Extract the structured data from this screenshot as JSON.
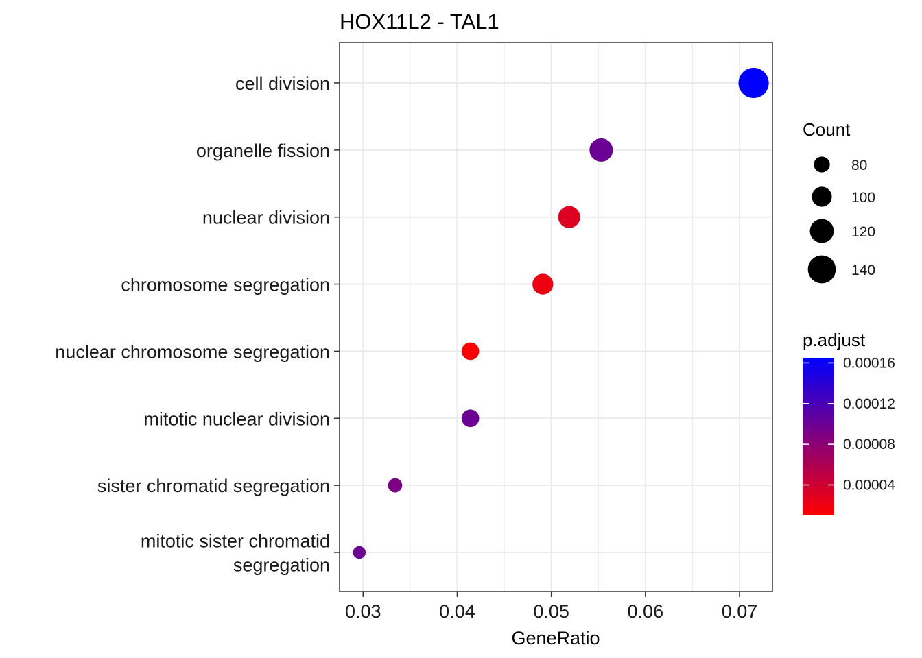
{
  "chart_data": {
    "type": "scatter",
    "title": "HOX11L2 - TAL1",
    "xlabel": "GeneRatio",
    "ylabel": "",
    "xlim": [
      0.0275,
      0.0735
    ],
    "x_ticks": [
      0.03,
      0.04,
      0.05,
      0.06,
      0.07
    ],
    "x_tick_labels": [
      "0.03",
      "0.04",
      "0.05",
      "0.06",
      "0.07"
    ],
    "grid": true,
    "categories": [
      "cell division",
      "organelle fission",
      "nuclear division",
      "chromosome segregation",
      "nuclear chromosome segregation",
      "mitotic nuclear division",
      "sister chromatid segregation",
      "mitotic sister chromatid segregation"
    ],
    "category_labels": [
      [
        "cell division"
      ],
      [
        "organelle fission"
      ],
      [
        "nuclear division"
      ],
      [
        "chromosome segregation"
      ],
      [
        "nuclear chromosome segregation"
      ],
      [
        "mitotic nuclear division"
      ],
      [
        "sister chromatid segregation"
      ],
      [
        "mitotic sister chromatid",
        "segregation"
      ]
    ],
    "points": [
      {
        "term": "cell division",
        "gene_ratio": 0.0715,
        "count": 152,
        "p_adjust": 0.000165
      },
      {
        "term": "organelle fission",
        "gene_ratio": 0.0553,
        "count": 117,
        "p_adjust": 0.0001
      },
      {
        "term": "nuclear division",
        "gene_ratio": 0.0519,
        "count": 110,
        "p_adjust": 3e-05
      },
      {
        "term": "chromosome segregation",
        "gene_ratio": 0.0491,
        "count": 104,
        "p_adjust": 2e-05
      },
      {
        "term": "nuclear chromosome segregation",
        "gene_ratio": 0.0414,
        "count": 88,
        "p_adjust": 1.2e-05
      },
      {
        "term": "mitotic nuclear division",
        "gene_ratio": 0.0414,
        "count": 88,
        "p_adjust": 0.0001
      },
      {
        "term": "sister chromatid segregation",
        "gene_ratio": 0.0334,
        "count": 71,
        "p_adjust": 9e-05
      },
      {
        "term": "mitotic sister chromatid segregation",
        "gene_ratio": 0.0296,
        "count": 63,
        "p_adjust": 0.0001
      }
    ],
    "size_legend": {
      "title": "Count",
      "values": [
        80,
        100,
        120,
        140
      ],
      "labels": [
        "80",
        "100",
        "120",
        "140"
      ]
    },
    "color_legend": {
      "title": "p.adjust",
      "range": [
        1e-05,
        0.000165
      ],
      "ticks": [
        0.00016,
        0.00012,
        8e-05,
        4e-05
      ],
      "tick_labels": [
        "0.00016",
        "0.00012",
        "0.00008",
        "0.00004"
      ],
      "low_color": "#ff0000",
      "high_color": "#0000ff"
    },
    "legend_position": "right",
    "panel_border_color": "#333333",
    "grid_color": "#ebebeb"
  }
}
